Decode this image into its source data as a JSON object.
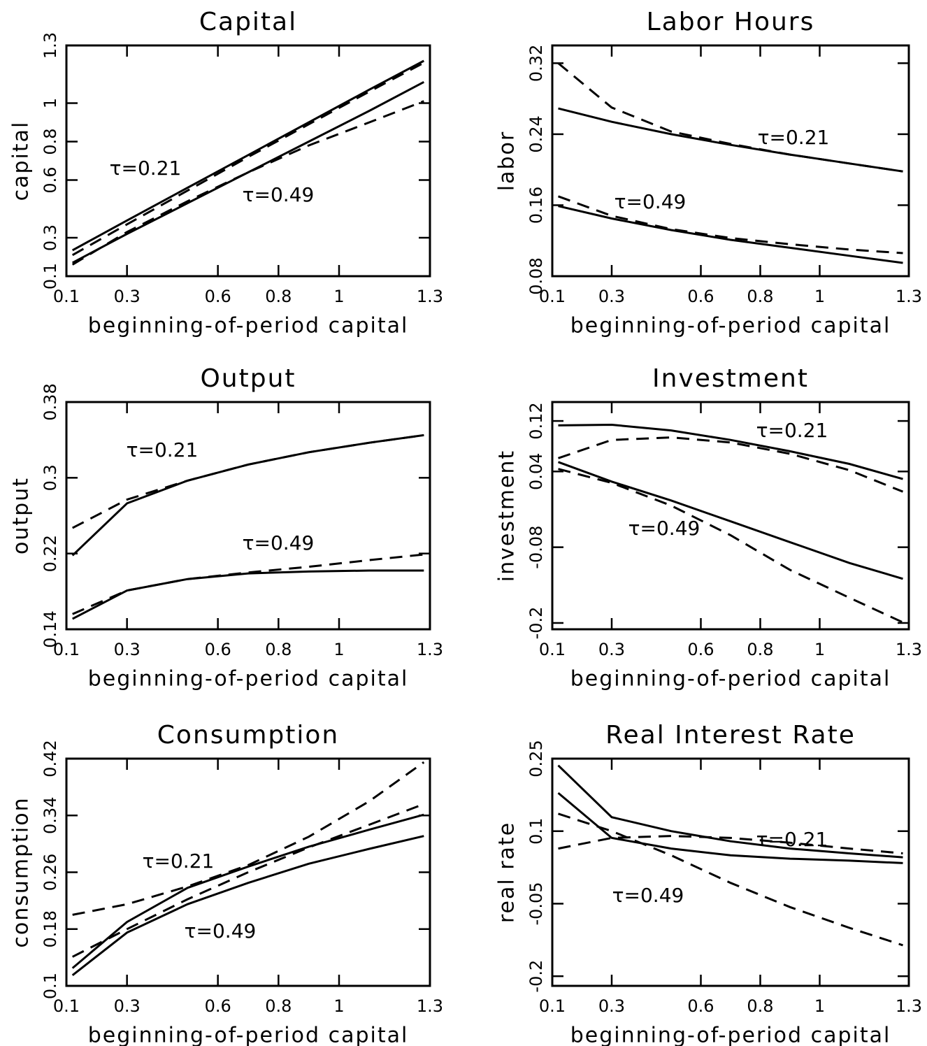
{
  "chart_data": [
    {
      "type": "line",
      "title": "Capital",
      "xlabel": "beginning-of-period capital",
      "ylabel": "capital",
      "x": [
        0.12,
        0.3,
        0.5,
        0.7,
        0.9,
        1.1,
        1.28
      ],
      "xlim": [
        0.1,
        1.3
      ],
      "xticks": [
        0.1,
        0.3,
        0.6,
        0.8,
        1.0,
        1.3
      ],
      "ylim": [
        0.1,
        1.3
      ],
      "yticks": [
        0.1,
        0.3,
        0.6,
        0.8,
        1.0,
        1.3
      ],
      "series": [
        {
          "color": "#000",
          "linestyle": "solid",
          "values": [
            0.235,
            0.39,
            0.56,
            0.73,
            0.9,
            1.07,
            1.22
          ]
        },
        {
          "color": "#000",
          "linestyle": "dashed",
          "values": [
            0.21,
            0.37,
            0.545,
            0.72,
            0.89,
            1.06,
            1.21
          ]
        },
        {
          "color": "#000",
          "linestyle": "solid",
          "values": [
            0.17,
            0.32,
            0.48,
            0.64,
            0.8,
            0.96,
            1.11
          ]
        },
        {
          "color": "#000",
          "linestyle": "dashed",
          "values": [
            0.16,
            0.33,
            0.49,
            0.64,
            0.78,
            0.9,
            1.01
          ]
        }
      ],
      "annotations": [
        "τ=0.21",
        "τ=0.49"
      ]
    },
    {
      "type": "line",
      "title": "Labor Hours",
      "xlabel": "beginning-of-period capital",
      "ylabel": "labor",
      "x": [
        0.12,
        0.3,
        0.5,
        0.7,
        0.9,
        1.1,
        1.28
      ],
      "xlim": [
        0.1,
        1.3
      ],
      "xticks": [
        0.1,
        0.3,
        0.6,
        0.8,
        1.0,
        1.3
      ],
      "ylim": [
        0.08,
        0.34
      ],
      "yticks": [
        0.08,
        0.16,
        0.24,
        0.32
      ],
      "series": [
        {
          "color": "#000",
          "linestyle": "solid",
          "values": [
            0.269,
            0.254,
            0.24,
            0.228,
            0.217,
            0.207,
            0.198
          ]
        },
        {
          "color": "#000",
          "linestyle": "dashed",
          "values": [
            0.32,
            0.27,
            0.243,
            0.229,
            0.217,
            0.207,
            0.198
          ]
        },
        {
          "color": "#000",
          "linestyle": "solid",
          "values": [
            0.159,
            0.145,
            0.132,
            0.121,
            0.112,
            0.103,
            0.095
          ]
        },
        {
          "color": "#000",
          "linestyle": "dashed",
          "values": [
            0.17,
            0.148,
            0.133,
            0.123,
            0.116,
            0.11,
            0.106
          ]
        }
      ],
      "annotations": [
        "τ=0.21",
        "τ=0.49"
      ]
    },
    {
      "type": "line",
      "title": "Output",
      "xlabel": "beginning-of-period capital",
      "ylabel": "output",
      "x": [
        0.12,
        0.3,
        0.5,
        0.7,
        0.9,
        1.1,
        1.28
      ],
      "xlim": [
        0.1,
        1.3
      ],
      "xticks": [
        0.1,
        0.3,
        0.6,
        0.8,
        1.0,
        1.3
      ],
      "ylim": [
        0.14,
        0.38
      ],
      "yticks": [
        0.14,
        0.22,
        0.3,
        0.38
      ],
      "series": [
        {
          "color": "#000",
          "linestyle": "solid",
          "values": [
            0.218,
            0.273,
            0.297,
            0.314,
            0.327,
            0.337,
            0.345
          ]
        },
        {
          "color": "#000",
          "linestyle": "dashed",
          "values": [
            0.247,
            0.277,
            0.297,
            0.314,
            0.327,
            0.337,
            0.345
          ]
        },
        {
          "color": "#000",
          "linestyle": "solid",
          "values": [
            0.151,
            0.181,
            0.193,
            0.199,
            0.201,
            0.202,
            0.202
          ]
        },
        {
          "color": "#000",
          "linestyle": "dashed",
          "values": [
            0.156,
            0.181,
            0.193,
            0.2,
            0.206,
            0.213,
            0.219
          ]
        }
      ],
      "annotations": [
        "τ=0.21",
        "τ=0.49"
      ]
    },
    {
      "type": "line",
      "title": "Investment",
      "xlabel": "beginning-of-period capital",
      "ylabel": "investment",
      "x": [
        0.12,
        0.3,
        0.5,
        0.7,
        0.9,
        1.1,
        1.28
      ],
      "xlim": [
        0.1,
        1.3
      ],
      "xticks": [
        0.1,
        0.3,
        0.6,
        0.8,
        1.0,
        1.3
      ],
      "ylim": [
        -0.21,
        0.15
      ],
      "yticks": [
        -0.2,
        -0.08,
        0.04,
        0.12
      ],
      "series": [
        {
          "color": "#000",
          "linestyle": "solid",
          "values": [
            0.113,
            0.114,
            0.105,
            0.09,
            0.072,
            0.052,
            0.028
          ]
        },
        {
          "color": "#000",
          "linestyle": "dashed",
          "values": [
            0.061,
            0.09,
            0.094,
            0.086,
            0.068,
            0.042,
            0.008
          ]
        },
        {
          "color": "#000",
          "linestyle": "solid",
          "values": [
            0.055,
            0.024,
            -0.006,
            -0.039,
            -0.072,
            -0.105,
            -0.13
          ]
        },
        {
          "color": "#000",
          "linestyle": "dashed",
          "values": [
            0.044,
            0.022,
            -0.014,
            -0.061,
            -0.116,
            -0.16,
            -0.199
          ]
        }
      ],
      "annotations": [
        "τ=0.21",
        "τ=0.49"
      ]
    },
    {
      "type": "line",
      "title": "Consumption",
      "xlabel": "beginning-of-period capital",
      "ylabel": "consumption",
      "x": [
        0.12,
        0.3,
        0.5,
        0.7,
        0.9,
        1.1,
        1.28
      ],
      "xlim": [
        0.1,
        1.3
      ],
      "xticks": [
        0.1,
        0.3,
        0.6,
        0.8,
        1.0,
        1.3
      ],
      "ylim": [
        0.1,
        0.42
      ],
      "yticks": [
        0.1,
        0.18,
        0.26,
        0.34,
        0.42
      ],
      "series": [
        {
          "color": "#000",
          "linestyle": "solid",
          "values": [
            0.125,
            0.19,
            0.238,
            0.268,
            0.296,
            0.32,
            0.341
          ]
        },
        {
          "color": "#000",
          "linestyle": "solid",
          "values": [
            0.115,
            0.175,
            0.215,
            0.245,
            0.272,
            0.293,
            0.311
          ]
        },
        {
          "color": "#000",
          "linestyle": "dashed",
          "values": [
            0.2,
            0.215,
            0.24,
            0.27,
            0.31,
            0.36,
            0.415
          ]
        },
        {
          "color": "#000",
          "linestyle": "dashed",
          "values": [
            0.141,
            0.18,
            0.222,
            0.26,
            0.295,
            0.327,
            0.356
          ]
        }
      ],
      "annotations": [
        "τ=0.21",
        "τ=0.49"
      ]
    },
    {
      "type": "line",
      "title": "Real Interest Rate",
      "xlabel": "beginning-of-period capital",
      "ylabel": "real rate",
      "x": [
        0.12,
        0.3,
        0.5,
        0.7,
        0.9,
        1.1,
        1.28
      ],
      "xlim": [
        0.1,
        1.3
      ],
      "xticks": [
        0.1,
        0.3,
        0.6,
        0.8,
        1.0,
        1.3
      ],
      "ylim": [
        -0.22,
        0.25
      ],
      "yticks": [
        -0.2,
        -0.05,
        0.1,
        0.25
      ],
      "series": [
        {
          "color": "#000",
          "linestyle": "solid",
          "values": [
            0.236,
            0.129,
            0.1,
            0.079,
            0.064,
            0.054,
            0.046
          ]
        },
        {
          "color": "#000",
          "linestyle": "solid",
          "values": [
            0.179,
            0.086,
            0.064,
            0.05,
            0.043,
            0.039,
            0.034
          ]
        },
        {
          "color": "#000",
          "linestyle": "dashed",
          "values": [
            0.136,
            0.1,
            0.05,
            -0.007,
            -0.057,
            -0.1,
            -0.136
          ]
        },
        {
          "color": "#000",
          "linestyle": "dashed",
          "values": [
            0.064,
            0.086,
            0.09,
            0.086,
            0.076,
            0.064,
            0.054
          ]
        }
      ],
      "annotations": [
        "τ=0.21",
        "τ=0.49"
      ]
    }
  ]
}
